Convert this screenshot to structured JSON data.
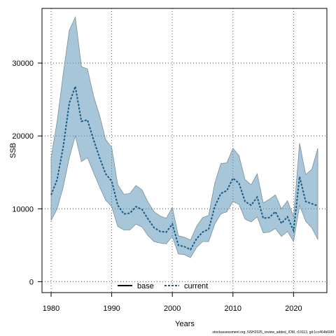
{
  "chart_data": {
    "type": "line",
    "xlabel": "Years",
    "ylabel": "SSB",
    "xlim": [
      1978.5,
      2025.5
    ],
    "ylim": [
      -1500,
      37500
    ],
    "x_ticks": [
      1980,
      1990,
      2000,
      2010,
      2020
    ],
    "y_ticks": [
      0,
      10000,
      20000,
      30000
    ],
    "x_tick_labels": [
      "1980",
      "1990",
      "2000",
      "2010",
      "2020"
    ],
    "y_tick_labels": [
      "0",
      "10000",
      "20000",
      "30000"
    ],
    "grid": true,
    "legend_position": "bottom",
    "x": [
      1980,
      1981,
      1982,
      1983,
      1984,
      1985,
      1986,
      1987,
      1988,
      1989,
      1990,
      1991,
      1992,
      1993,
      1994,
      1995,
      1996,
      1997,
      1998,
      1999,
      2000,
      2001,
      2002,
      2003,
      2004,
      2005,
      2006,
      2007,
      2008,
      2009,
      2010,
      2011,
      2012,
      2013,
      2014,
      2015,
      2016,
      2017,
      2018,
      2019,
      2020,
      2021,
      2022,
      2023,
      2024
    ],
    "series": [
      {
        "name": "base",
        "color": "#000000",
        "style": "solid",
        "values": [
          null,
          null,
          null,
          null,
          null,
          null,
          null,
          null,
          null,
          null,
          null,
          null,
          null,
          null,
          null,
          null,
          null,
          null,
          null,
          null,
          null,
          null,
          null,
          null,
          null,
          null,
          null,
          null,
          null,
          null,
          null,
          null,
          null,
          null,
          null,
          null,
          null,
          null,
          null,
          null,
          null,
          null,
          null,
          null,
          null
        ]
      },
      {
        "name": "current",
        "color": "#1a5a85",
        "style": "dashed",
        "values": [
          11900,
          14000,
          18500,
          24500,
          26800,
          22000,
          22200,
          19500,
          17000,
          14800,
          13800,
          10500,
          9300,
          9400,
          10300,
          9900,
          8600,
          7400,
          6900,
          6800,
          7900,
          5000,
          4800,
          4400,
          5900,
          6800,
          7200,
          10300,
          12100,
          12500,
          14200,
          13500,
          11000,
          10500,
          11600,
          8700,
          8800,
          9600,
          8000,
          8900,
          7000,
          14400,
          11000,
          10700,
          10400
        ],
        "lower": [
          8400,
          10000,
          13000,
          17000,
          20000,
          16500,
          17000,
          15000,
          13000,
          11200,
          10300,
          7600,
          7100,
          7100,
          7900,
          7500,
          6300,
          5500,
          5300,
          5200,
          6200,
          3800,
          3700,
          3300,
          4700,
          5500,
          5500,
          7900,
          9300,
          9600,
          11000,
          10600,
          8600,
          8200,
          8900,
          6700,
          6800,
          7300,
          6200,
          6900,
          5500,
          10500,
          8300,
          7400,
          5800
        ],
        "upper": [
          17000,
          22000,
          28500,
          34500,
          36300,
          29500,
          29200,
          25500,
          22800,
          19500,
          18400,
          13300,
          12000,
          12100,
          13200,
          12600,
          10900,
          9600,
          9000,
          8700,
          10200,
          6300,
          6100,
          5700,
          7600,
          8800,
          9100,
          13500,
          16200,
          16300,
          18300,
          17300,
          14000,
          13300,
          14800,
          10800,
          11300,
          11900,
          10000,
          11100,
          8900,
          19000,
          14700,
          15400,
          18300
        ]
      }
    ],
    "band_color": "#4f8db3"
  },
  "footer": "stockassessment.org, NSH2025_review_added_IOM, r19113, git:1cc464b606f"
}
